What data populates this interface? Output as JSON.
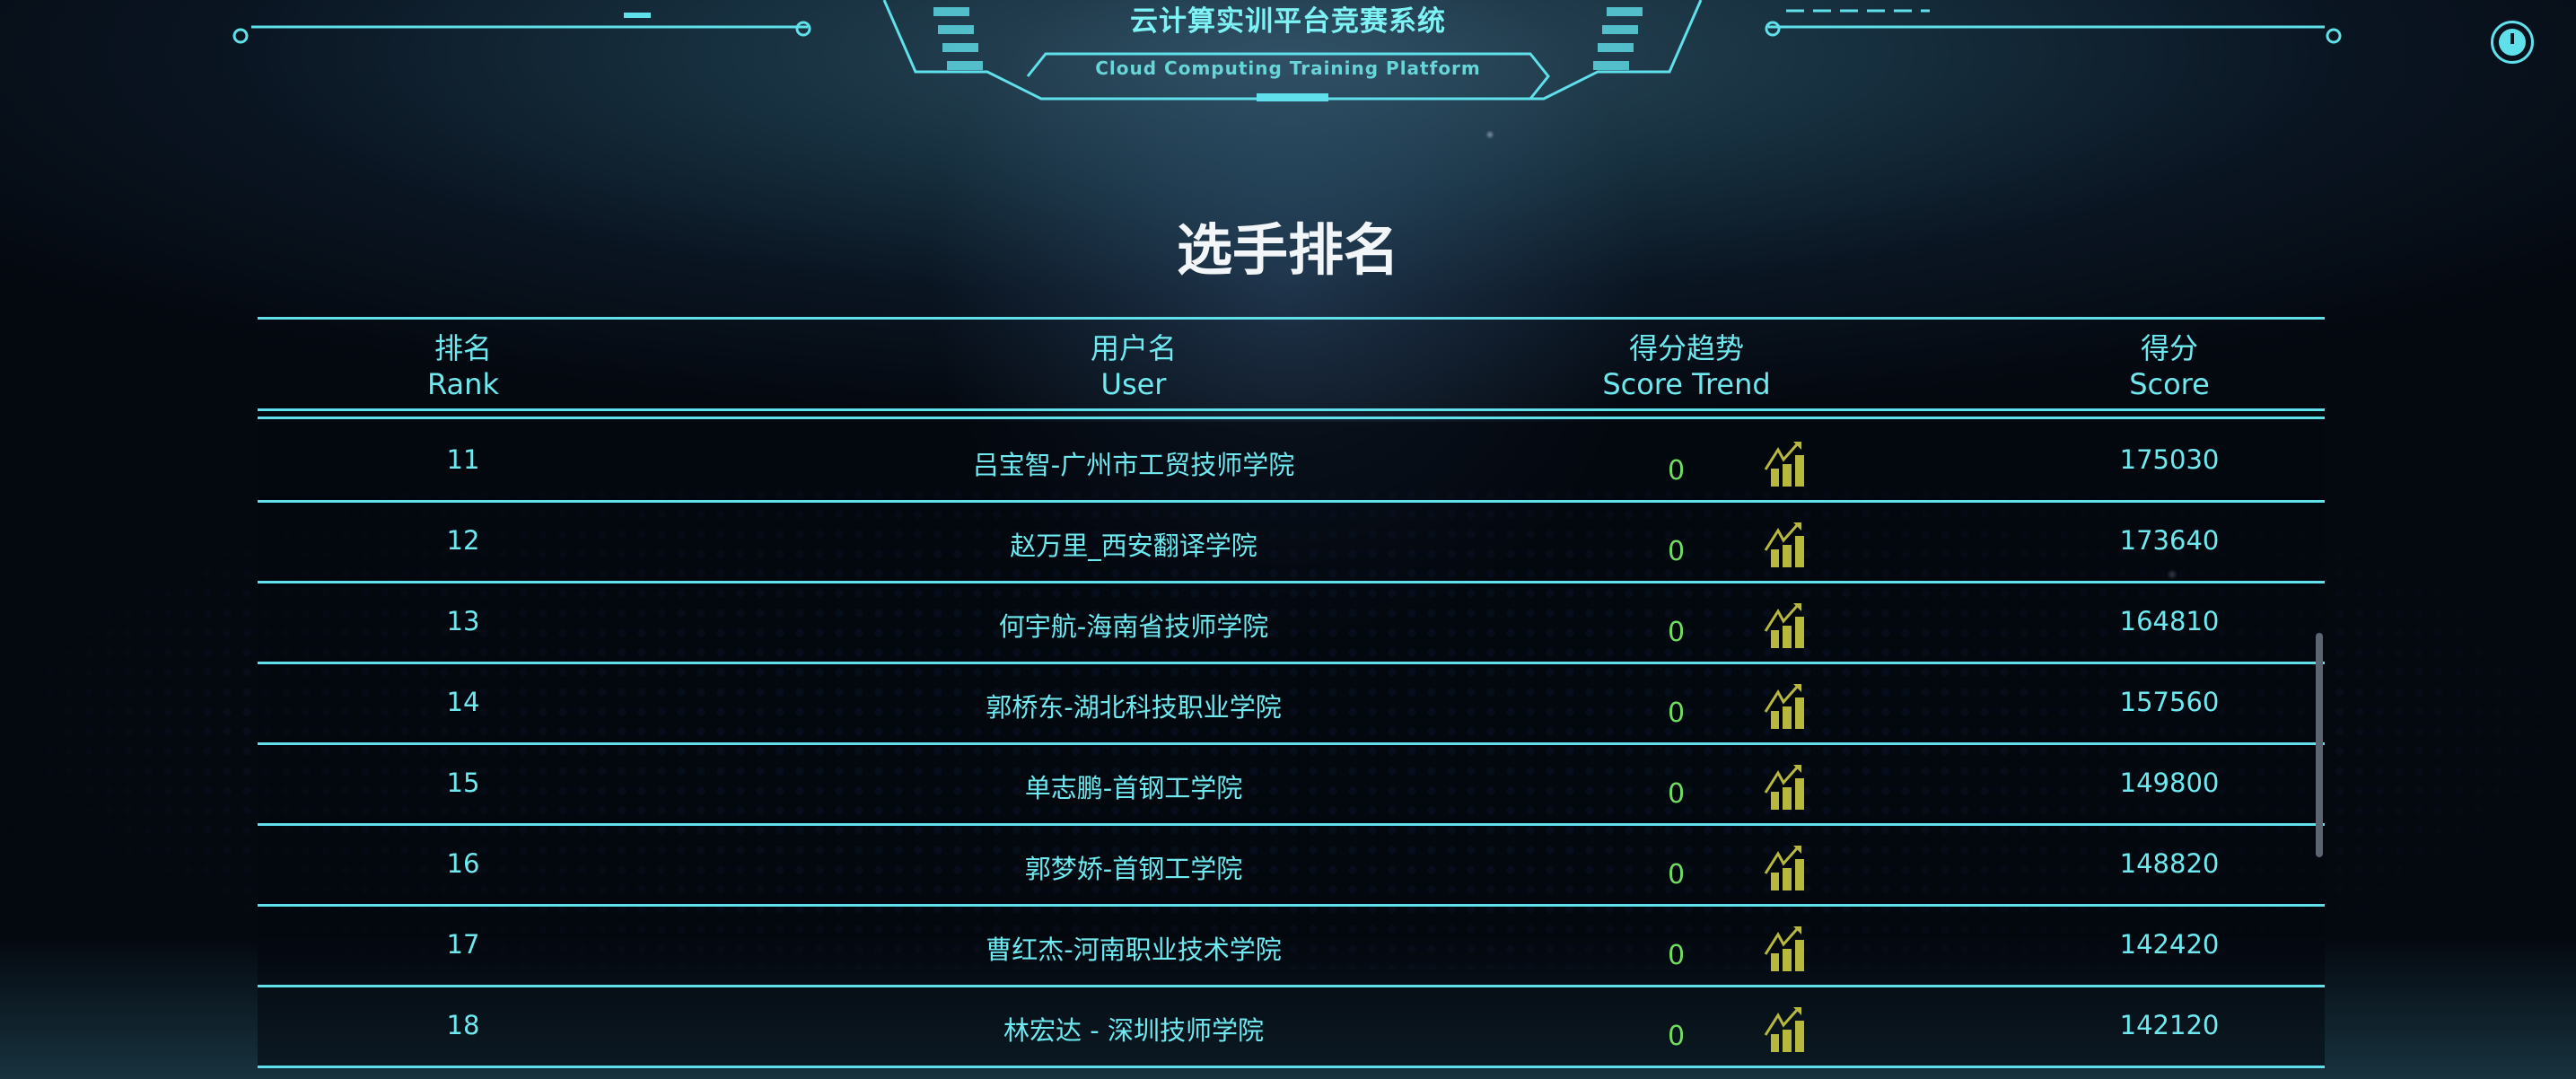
{
  "header": {
    "title": "云计算实训平台竞赛系统",
    "subtitle": "Cloud Computing Training Platform",
    "clock_icon": "clock-icon"
  },
  "page_title": "选手排名",
  "columns": [
    {
      "zh": "排名",
      "en": "Rank"
    },
    {
      "zh": "用户名",
      "en": "User"
    },
    {
      "zh": "得分趋势",
      "en": "Score Trend"
    },
    {
      "zh": "得分",
      "en": "Score"
    }
  ],
  "colors": {
    "accent": "#5fe0ea",
    "trend_value": "#6fdc5f",
    "trend_icon": "#b8b83c",
    "title": "#f2f6f8"
  },
  "rows": [
    {
      "rank": "11",
      "user": "吕宝智-广州市工贸技师学院",
      "trend": "0",
      "score": "175030"
    },
    {
      "rank": "12",
      "user": "赵万里_西安翻译学院",
      "trend": "0",
      "score": "173640"
    },
    {
      "rank": "13",
      "user": "何宇航-海南省技师学院",
      "trend": "0",
      "score": "164810"
    },
    {
      "rank": "14",
      "user": "郭桥东-湖北科技职业学院",
      "trend": "0",
      "score": "157560"
    },
    {
      "rank": "15",
      "user": "单志鹏-首钢工学院",
      "trend": "0",
      "score": "149800"
    },
    {
      "rank": "16",
      "user": "郭梦娇-首钢工学院",
      "trend": "0",
      "score": "148820"
    },
    {
      "rank": "17",
      "user": "曹红杰-河南职业技术学院",
      "trend": "0",
      "score": "142420"
    },
    {
      "rank": "18",
      "user": "林宏达 - 深圳技师学院",
      "trend": "0",
      "score": "142120"
    }
  ]
}
